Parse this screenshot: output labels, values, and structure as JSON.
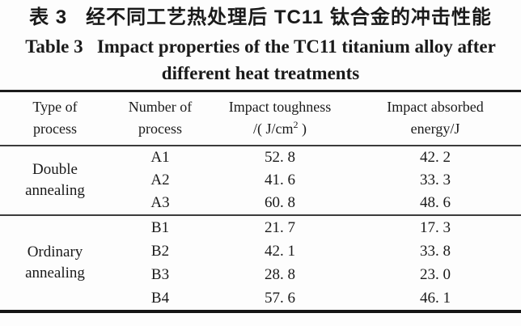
{
  "title": {
    "zh": "表 3   经不同工艺热处理后 TC11 钛合金的冲击性能",
    "en_line1": "Table 3   Impact properties of the TC11 titanium alloy after",
    "en_line2": "different heat treatments"
  },
  "table": {
    "headers": {
      "col1": {
        "line1": "Type of",
        "line2": "process"
      },
      "col2": {
        "line1": "Number of",
        "line2": "process"
      },
      "col3": {
        "line1": "Impact toughness",
        "unit_pre": "/( J/cm",
        "unit_sup": "2",
        "unit_post": " )"
      },
      "col4": {
        "line1": "Impact absorbed",
        "line2": "energy/J"
      }
    },
    "groups": [
      {
        "type_line1": "Double",
        "type_line2": "annealing",
        "rows": [
          {
            "number": "A1",
            "toughness": "52. 8",
            "energy": "42. 2"
          },
          {
            "number": "A2",
            "toughness": "41. 6",
            "energy": "33. 3"
          },
          {
            "number": "A3",
            "toughness": "60. 8",
            "energy": "48. 6"
          }
        ]
      },
      {
        "type_line1": "Ordinary",
        "type_line2": "annealing",
        "rows": [
          {
            "number": "B1",
            "toughness": "21. 7",
            "energy": "17. 3"
          },
          {
            "number": "B2",
            "toughness": "42. 1",
            "energy": "33. 8"
          },
          {
            "number": "B3",
            "toughness": "28. 8",
            "energy": "23. 0"
          },
          {
            "number": "B4",
            "toughness": "57. 6",
            "energy": "46. 1"
          }
        ]
      }
    ]
  }
}
